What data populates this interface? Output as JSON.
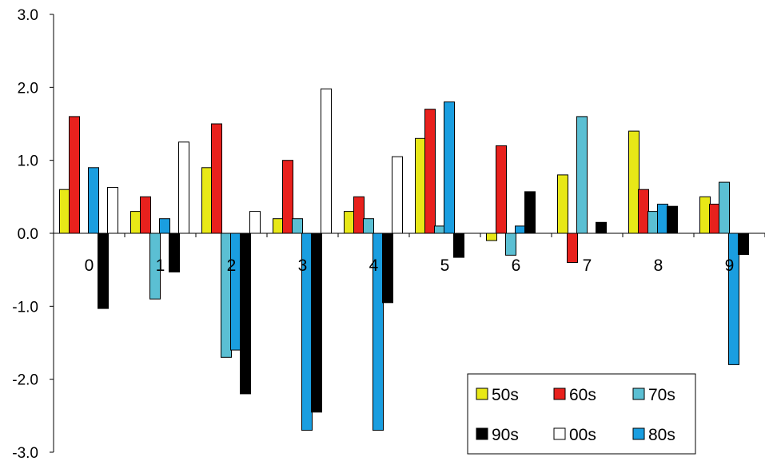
{
  "chart_data": {
    "type": "bar",
    "categories": [
      "0",
      "1",
      "2",
      "3",
      "4",
      "5",
      "6",
      "7",
      "8",
      "9"
    ],
    "ylim": [
      -3.0,
      3.0
    ],
    "yticks": [
      "-3.0",
      "-2.0",
      "-1.0",
      "0.0",
      "1.0",
      "2.0",
      "3.0"
    ],
    "grid": false,
    "legend_position": "bottom-right",
    "series": [
      {
        "name": "50s",
        "color": "#e8e817",
        "values": [
          0.6,
          0.3,
          0.9,
          0.2,
          0.3,
          1.3,
          -0.1,
          0.8,
          1.4,
          0.5
        ]
      },
      {
        "name": "60s",
        "color": "#e8211d",
        "values": [
          1.6,
          0.5,
          1.5,
          1.0,
          0.5,
          1.7,
          1.2,
          -0.4,
          0.6,
          0.4
        ]
      },
      {
        "name": "70s",
        "color": "#5bbfd3",
        "values": [
          null,
          -0.9,
          -1.7,
          0.2,
          0.2,
          0.1,
          -0.3,
          1.6,
          0.3,
          0.7
        ]
      },
      {
        "name": "80s",
        "color": "#1a9ee0",
        "values": [
          0.9,
          0.2,
          -1.6,
          -2.7,
          -2.7,
          1.8,
          0.1,
          null,
          0.4,
          -1.8
        ]
      },
      {
        "name": "90s",
        "color": "#000000",
        "values": [
          -1.03,
          -0.53,
          -2.2,
          -2.45,
          -0.95,
          -0.33,
          0.57,
          0.15,
          0.37,
          -0.29
        ]
      },
      {
        "name": "00s",
        "color": "#ffffff",
        "values": [
          0.63,
          1.25,
          0.3,
          1.98,
          1.05,
          null,
          null,
          null,
          null,
          null
        ]
      }
    ],
    "legend_order": [
      "50s",
      "60s",
      "70s",
      "90s",
      "00s",
      "80s"
    ]
  }
}
